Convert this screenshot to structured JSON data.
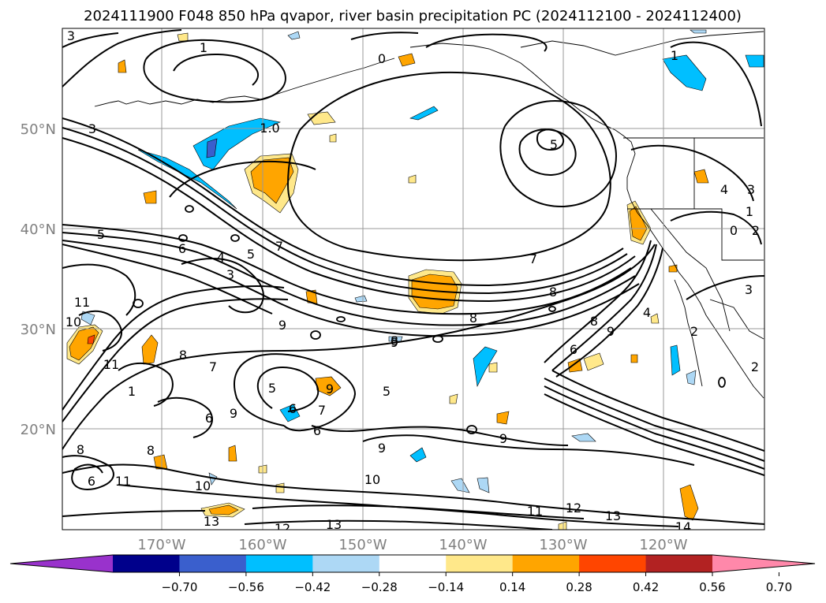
{
  "title": "2024111900 F048 850 hPa qvapor, river basin precipitation PC (2024112100 - 2024112400)",
  "map": {
    "lat_labels": [
      "50°N",
      "40°N",
      "30°N",
      "20°N"
    ],
    "lon_labels": [
      "170°W",
      "160°W",
      "150°W",
      "140°W",
      "130°W",
      "120°W"
    ],
    "label_color": "#808080",
    "grid_color": "#999999"
  },
  "contour_labels": [
    "3",
    "1",
    "0",
    "1",
    "1.0",
    "5",
    "3",
    "5",
    "6",
    "4",
    "3",
    "5",
    "7",
    "8",
    "9",
    "8",
    "11",
    "10",
    "11",
    "8",
    "7",
    "5",
    "6",
    "9",
    "7",
    "6",
    "8",
    "8",
    "8",
    "9",
    "9",
    "6",
    "11",
    "10",
    "10",
    "13",
    "12",
    "13",
    "11",
    "12",
    "13",
    "14",
    "8",
    "9",
    "6",
    "4",
    "2",
    "1",
    "0",
    "2",
    "3",
    "2",
    "4",
    "3",
    "1",
    "6",
    "5",
    "7",
    "9",
    "9"
  ],
  "colorbar": {
    "ticks": [
      "−0.70",
      "−0.56",
      "−0.42",
      "−0.28",
      "−0.14",
      "0.14",
      "0.28",
      "0.42",
      "0.56",
      "0.70"
    ],
    "colors": [
      "#9932cc",
      "#00008b",
      "#3a5fcd",
      "#00bfff",
      "#add8f5",
      "#ffffff",
      "#ffe88a",
      "#ffa500",
      "#ff4500",
      "#b22222",
      "#ff88aa"
    ]
  }
}
